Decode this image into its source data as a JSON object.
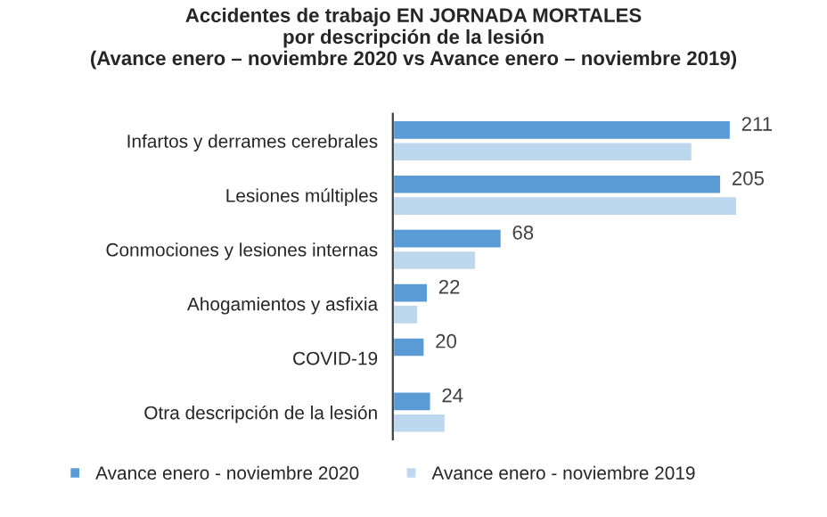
{
  "chart_data": {
    "type": "bar",
    "orientation": "horizontal",
    "title": "Accidentes de trabajo EN JORNADA MORTALES\npor descripción de la lesión\n(Avance enero – noviembre 2020 vs Avance enero – noviembre 2019)",
    "categories": [
      "Infartos y derrames cerebrales",
      "Lesiones múltiples",
      "Conmociones y lesiones internas",
      "Ahogamientos y asfixia",
      "COVID-19",
      "Otra descripción de la lesión"
    ],
    "series": [
      {
        "name": "Avance enero - noviembre 2020",
        "color": "#5b9bd5",
        "values": [
          211,
          205,
          68,
          22,
          20,
          24
        ],
        "value_labels": [
          "211",
          "205",
          "68",
          "22",
          "20",
          "24"
        ]
      },
      {
        "name": "Avance enero - noviembre 2019",
        "color": "#bdd7ee",
        "values": [
          187,
          215,
          52,
          16,
          null,
          33
        ]
      }
    ],
    "tick_labels": "y",
    "grid": false,
    "legend": "bottom"
  }
}
